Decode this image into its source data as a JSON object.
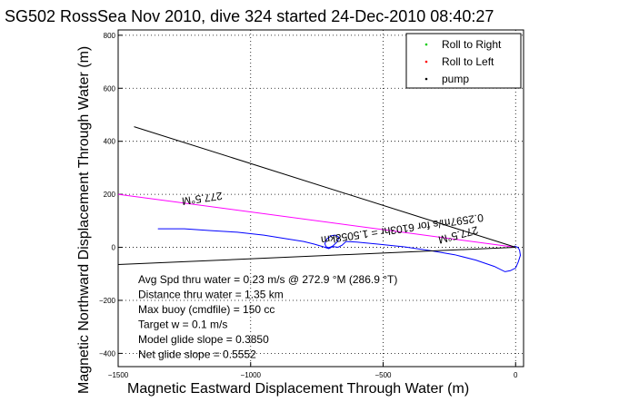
{
  "chart_data": {
    "type": "line",
    "title": "SG502 RossSea Nov 2010, dive 324 started 24-Dec-2010 08:40:27",
    "xlabel": "Magnetic Eastward Displacement Through Water (m)",
    "ylabel": "Magnetic Northward Displacement Through Water (m)",
    "xlim": [
      -1500,
      30
    ],
    "ylim": [
      -450,
      820
    ],
    "xticks": [
      -1500,
      -1000,
      -500,
      0
    ],
    "yticks": [
      -400,
      -200,
      0,
      200,
      400,
      600,
      800
    ],
    "grid": true,
    "legend": {
      "placement": "top-right",
      "entries": [
        {
          "label": "Roll to Right",
          "color": "#00cc00"
        },
        {
          "label": "Roll to Left",
          "color": "#ff0000"
        },
        {
          "label": "pump",
          "color": "#000000"
        }
      ]
    },
    "series": [
      {
        "role": "track",
        "color": "#0000ff",
        "x": [
          -1350,
          -1250,
          -1150,
          -1050,
          -950,
          -870,
          -800,
          -760,
          -725,
          -705,
          -690,
          -670,
          -655,
          -640,
          -600,
          -520,
          -420,
          -320,
          -230,
          -150,
          -80,
          -40,
          -20,
          0,
          10,
          18,
          15,
          8,
          -5
        ],
        "y": [
          70,
          70,
          63,
          57,
          46,
          33,
          22,
          12,
          2,
          -5,
          3,
          0,
          8,
          22,
          20,
          12,
          2,
          -13,
          -28,
          -48,
          -72,
          -92,
          -88,
          -78,
          -55,
          -30,
          -10,
          0,
          5
        ]
      },
      {
        "role": "loop",
        "color": "#0000ff",
        "x": [
          -700,
          -715,
          -720,
          -712,
          -695,
          -680,
          -667,
          -672,
          -690,
          -705,
          -710
        ],
        "y": [
          -3,
          2,
          14,
          32,
          44,
          46,
          38,
          22,
          5,
          -2,
          -3
        ]
      },
      {
        "role": "heading-line",
        "color": "#ff00ff",
        "x": [
          -1500,
          0
        ],
        "y": [
          200,
          0
        ]
      },
      {
        "role": "heading-line",
        "color": "#000000",
        "x": [
          -1440,
          0
        ],
        "y": [
          455,
          0
        ]
      },
      {
        "role": "velocity-line",
        "color": "#000000",
        "x": [
          -1500,
          0
        ],
        "y": [
          -65,
          0
        ]
      }
    ],
    "rotated_labels": [
      {
        "text": "277.5°M",
        "x": -1185,
        "y": 198,
        "angle": 172
      },
      {
        "text": "277.5°M",
        "x": -220,
        "y": 60,
        "angle": 165
      },
      {
        "text": "0.2597m/s for 6103hr = 1.5058km",
        "x": -430,
        "y": 83,
        "angle": 172
      }
    ],
    "annotations": [
      "Avg Spd thru water =  0.23 m/s @ 272.9   °M (286.9 °T)",
      "Distance thru water =  1.35 km",
      "Max buoy (cmdfile) = 150 cc",
      "Target w = 0.1 m/s",
      "Model glide slope = 0.3850",
      "Net glide slope = 0.5552"
    ]
  }
}
